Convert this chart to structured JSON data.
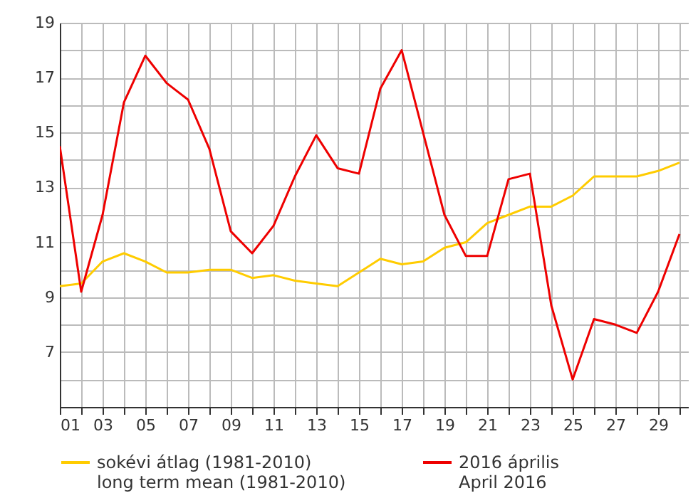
{
  "chart_data": {
    "type": "line",
    "x": [
      1,
      2,
      3,
      4,
      5,
      6,
      7,
      8,
      9,
      10,
      11,
      12,
      13,
      14,
      15,
      16,
      17,
      18,
      19,
      20,
      21,
      22,
      23,
      24,
      25,
      26,
      27,
      28,
      29,
      30
    ],
    "series": [
      {
        "name": "sokévi átlag (1981-2010)\nlong term mean (1981-2010)",
        "color": "#ffcc00",
        "values": [
          9.4,
          9.5,
          10.3,
          10.6,
          10.3,
          9.9,
          9.9,
          10.0,
          10.0,
          9.7,
          9.8,
          9.6,
          9.5,
          9.4,
          9.9,
          10.4,
          10.2,
          10.3,
          10.8,
          11.0,
          11.7,
          12.0,
          12.3,
          12.3,
          12.7,
          13.4,
          13.4,
          13.4,
          13.6,
          13.9
        ]
      },
      {
        "name": "2016 április\nApril 2016",
        "color": "#ee0000",
        "values": [
          14.5,
          9.2,
          12.0,
          16.1,
          17.8,
          16.8,
          16.2,
          14.4,
          11.4,
          10.6,
          11.6,
          13.4,
          14.9,
          13.7,
          13.5,
          16.6,
          18.0,
          15.0,
          12.0,
          10.5,
          10.5,
          13.3,
          13.5,
          8.7,
          6.0,
          8.2,
          8.0,
          7.7,
          9.2,
          11.3
        ]
      }
    ],
    "xlim": [
      1,
      30.4
    ],
    "xticks": [
      {
        "value": 1,
        "label": "01"
      },
      {
        "value": 2,
        "label": null
      },
      {
        "value": 3,
        "label": "03"
      },
      {
        "value": 4,
        "label": null
      },
      {
        "value": 5,
        "label": "05"
      },
      {
        "value": 6,
        "label": null
      },
      {
        "value": 7,
        "label": "07"
      },
      {
        "value": 8,
        "label": null
      },
      {
        "value": 9,
        "label": "09"
      },
      {
        "value": 10,
        "label": null
      },
      {
        "value": 11,
        "label": "11"
      },
      {
        "value": 12,
        "label": null
      },
      {
        "value": 13,
        "label": "13"
      },
      {
        "value": 14,
        "label": null
      },
      {
        "value": 15,
        "label": "15"
      },
      {
        "value": 16,
        "label": null
      },
      {
        "value": 17,
        "label": "17"
      },
      {
        "value": 18,
        "label": null
      },
      {
        "value": 19,
        "label": "19"
      },
      {
        "value": 20,
        "label": null
      },
      {
        "value": 21,
        "label": "21"
      },
      {
        "value": 22,
        "label": null
      },
      {
        "value": 23,
        "label": "23"
      },
      {
        "value": 24,
        "label": null
      },
      {
        "value": 25,
        "label": "25"
      },
      {
        "value": 26,
        "label": null
      },
      {
        "value": 27,
        "label": "27"
      },
      {
        "value": 28,
        "label": null
      },
      {
        "value": 29,
        "label": "29"
      },
      {
        "value": 30,
        "label": null
      }
    ],
    "ylim": [
      5,
      19
    ],
    "yticks": [
      {
        "value": 5,
        "label": null
      },
      {
        "value": 6,
        "label": null
      },
      7,
      {
        "value": 8,
        "label": null
      },
      9,
      {
        "value": 10,
        "label": null
      },
      11,
      {
        "value": 12,
        "label": null
      },
      13,
      {
        "value": 14,
        "label": null
      },
      15,
      {
        "value": 16,
        "label": null
      },
      17,
      {
        "value": 18,
        "label": null
      },
      19
    ],
    "grid": true,
    "legend": "bottom",
    "line_style": "solid"
  }
}
